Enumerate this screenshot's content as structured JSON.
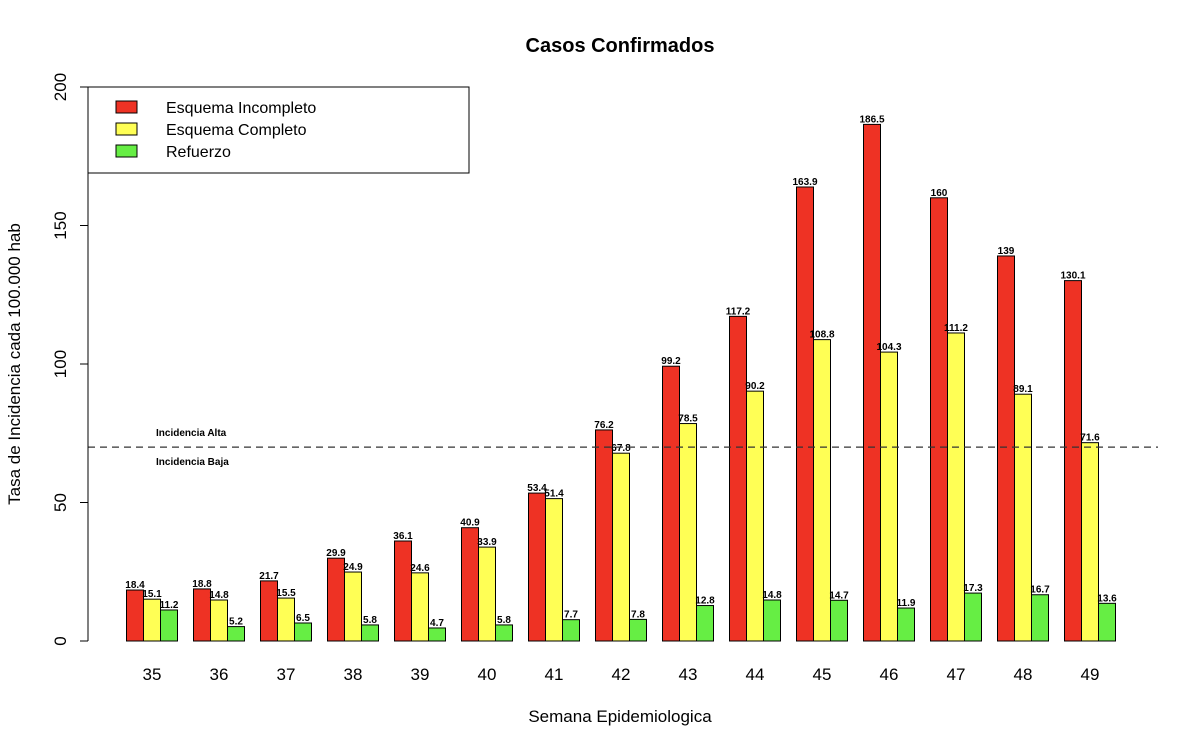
{
  "chart_data": {
    "type": "bar",
    "title": "Casos Confirmados",
    "xlabel": "Semana Epidemiologica",
    "ylabel": "Tasa de Incidencia cada 100.000 hab",
    "ylim": [
      0,
      200
    ],
    "yticks": [
      0,
      50,
      100,
      150,
      200
    ],
    "categories": [
      "35",
      "36",
      "37",
      "38",
      "39",
      "40",
      "41",
      "42",
      "43",
      "44",
      "45",
      "46",
      "47",
      "48",
      "49"
    ],
    "series": [
      {
        "name": "Esquema Incompleto",
        "color": "#ee3224",
        "values": [
          18.4,
          18.8,
          21.7,
          29.9,
          36.1,
          40.9,
          53.4,
          76.2,
          99.2,
          117.2,
          163.9,
          186.5,
          160,
          139,
          130.1
        ]
      },
      {
        "name": "Esquema Completo",
        "color": "#ffff55",
        "values": [
          15.1,
          14.8,
          15.5,
          24.9,
          24.6,
          33.9,
          51.4,
          67.8,
          78.5,
          90.2,
          108.8,
          104.3,
          111.2,
          89.1,
          71.6
        ]
      },
      {
        "name": "Refuerzo",
        "color": "#66ee44",
        "values": [
          11.2,
          5.2,
          6.5,
          5.8,
          4.7,
          5.8,
          7.7,
          7.8,
          12.8,
          14.8,
          14.7,
          11.9,
          17.3,
          16.7,
          13.6
        ]
      }
    ],
    "reference_line": {
      "value": 70,
      "label_above": "Incidencia Alta",
      "label_below": "Incidencia Baja",
      "style": "dashed"
    },
    "legend": {
      "position": "top-left"
    },
    "grid": false
  }
}
